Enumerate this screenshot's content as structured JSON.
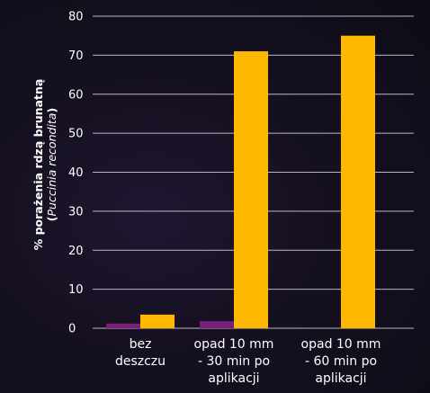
{
  "chart_data": {
    "type": "bar",
    "ylabel_line1": "% porażenia rdzą brunatną",
    "ylabel_line2_open": "(",
    "ylabel_line2_italic": "Puccinia recondita",
    "ylabel_line2_close": ")",
    "ylim": [
      0,
      80
    ],
    "yticks": [
      "0",
      "10",
      "20",
      "30",
      "40",
      "50",
      "60",
      "70",
      "80"
    ],
    "grid": true,
    "categories": [
      [
        "bez",
        "deszczu"
      ],
      [
        "opad 10 mm",
        "- 30 min po",
        "aplikacji"
      ],
      [
        "opad 10 mm",
        "- 60 min po",
        "aplikacji"
      ]
    ],
    "series": [
      {
        "values": [
          1.2,
          1.8,
          0
        ],
        "color": "#7b1f7a"
      },
      {
        "values": [
          3.5,
          71,
          75
        ],
        "color": "#ffb800"
      }
    ]
  }
}
